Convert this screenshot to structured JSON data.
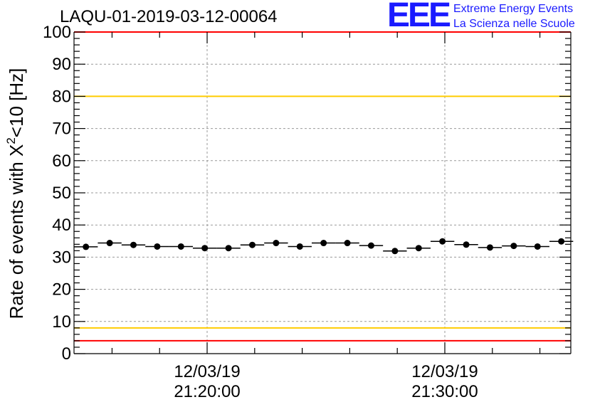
{
  "title": "LAQU-01-2019-03-12-00064",
  "logo": {
    "mark": "EEE",
    "line1": "Extreme Energy Events",
    "line2": "La Scienza nelle Scuole",
    "color": "#1a1aff"
  },
  "chart_data": {
    "type": "scatter",
    "title": "LAQU-01-2019-03-12-00064",
    "ylabel_text": "Rate of events with X",
    "ylabel_sup": "2",
    "ylabel_tail": "<10 [Hz]",
    "ylim": [
      0,
      100
    ],
    "yticks": [
      0,
      10,
      20,
      30,
      40,
      50,
      60,
      70,
      80,
      90,
      100
    ],
    "ytick_labels": [
      "0",
      "10",
      "20",
      "30",
      "40",
      "50",
      "60",
      "70",
      "80",
      "90",
      "100"
    ],
    "xlim": [
      -5.6,
      15.3
    ],
    "x_units": "minutes since 21:20:00",
    "xticks": [
      {
        "x": 0,
        "date": "12/03/19",
        "time": "21:20:00"
      },
      {
        "x": 10,
        "date": "12/03/19",
        "time": "21:30:00"
      }
    ],
    "bin_width": 1.0,
    "x": [
      -5.1,
      -4.1,
      -3.1,
      -2.1,
      -1.1,
      -0.1,
      0.9,
      1.9,
      2.9,
      3.9,
      4.9,
      5.9,
      6.9,
      7.9,
      8.9,
      9.9,
      10.9,
      11.9,
      12.9,
      13.9,
      14.9
    ],
    "values": [
      33.2,
      34.4,
      33.8,
      33.3,
      33.3,
      32.8,
      32.8,
      33.8,
      34.4,
      33.3,
      34.4,
      34.4,
      33.6,
      31.9,
      32.8,
      34.9,
      33.9,
      33.0,
      33.5,
      33.3,
      34.9
    ],
    "reference_lines": [
      {
        "name": "upper-red-limit",
        "y": 100,
        "color": "#ff0000"
      },
      {
        "name": "upper-yellow-limit",
        "y": 80,
        "color": "#ffcc00"
      },
      {
        "name": "lower-yellow-limit",
        "y": 8,
        "color": "#ffcc00"
      },
      {
        "name": "lower-red-limit",
        "y": 4,
        "color": "#ff0000"
      }
    ],
    "grid": true,
    "legend": "none"
  }
}
